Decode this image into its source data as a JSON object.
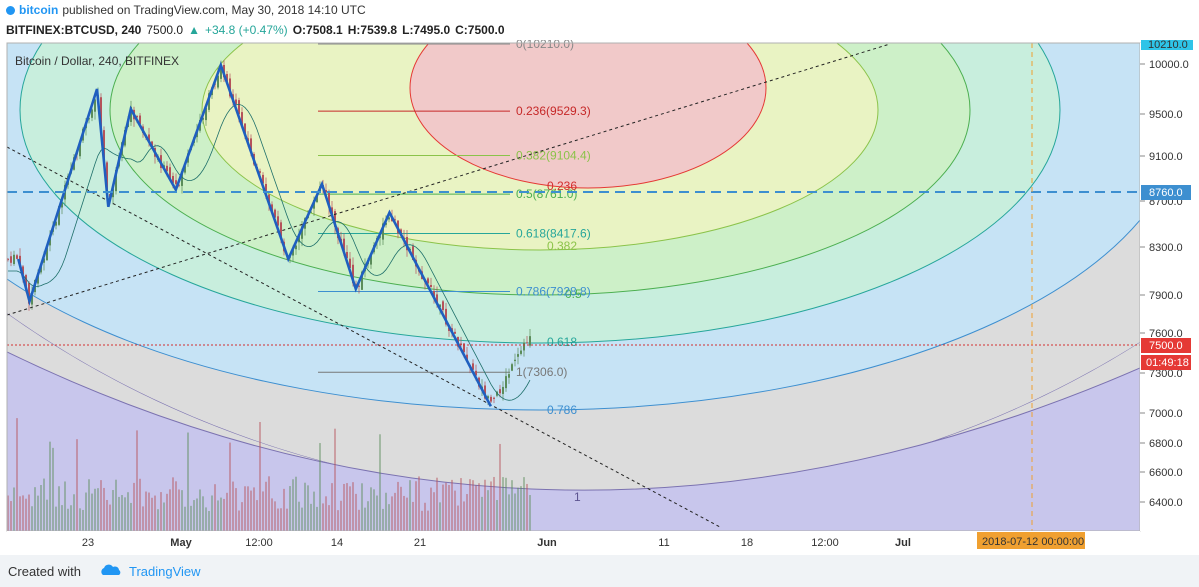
{
  "header": {
    "brand": "bitcoin",
    "published_text": "published on TradingView.com, May 30, 2018 14:10 UTC"
  },
  "quote": {
    "symbol": "BITFINEX:BTCUSD, 240",
    "last": "7500.0",
    "change": "+34.8 (+0.47%)",
    "open": "O:7508.1",
    "high": "H:7539.8",
    "low": "L:7495.0",
    "close": "C:7500.0"
  },
  "footer": {
    "created_with": "Created with",
    "tradingview": "TradingView"
  },
  "chart_data": {
    "type": "candlestick",
    "title": "Bitcoin / Dollar, 240, BITFINEX",
    "y_axis_ticks": [
      "10000.0",
      "9500.0",
      "9100.0",
      "8700.0",
      "8300.0",
      "7900.0",
      "7600.0",
      "7300.0",
      "7000.0",
      "6800.0",
      "6600.0",
      "6400.0"
    ],
    "y_top_label": "10210.0",
    "x_axis_ticks": [
      "23",
      "May",
      "12:00",
      "14",
      "21",
      "Jun",
      "11",
      "18",
      "12:00",
      "Jul"
    ],
    "price_label": "7500.0",
    "countdown_label": "01:49:18",
    "level_label": "8760.0",
    "date_label": "2018-07-12 00:00:00",
    "fib_retracement": [
      {
        "label": "0(10210.0)",
        "value": 10210.0
      },
      {
        "label": "0.236(9529.3)",
        "value": 9529.3
      },
      {
        "label": "0.382(9104.4)",
        "value": 9104.4
      },
      {
        "label": "0.5(8761.0)",
        "value": 8761.0
      },
      {
        "label": "0.618(8417.6)",
        "value": 8417.6
      },
      {
        "label": "0.786(7928.8)",
        "value": 7928.8
      },
      {
        "label": "1(7306.0)",
        "value": 7306.0
      }
    ],
    "fib_circle_labels": [
      "0.236",
      "0.382",
      "0.5",
      "0.618",
      "0.786",
      "1"
    ],
    "zigzag": [
      {
        "x": "2018-04-17",
        "y": 8200
      },
      {
        "x": "2018-04-18",
        "y": 7850
      },
      {
        "x": "2018-04-24",
        "y": 9750
      },
      {
        "x": "2018-04-25",
        "y": 8650
      },
      {
        "x": "2018-04-27",
        "y": 9550
      },
      {
        "x": "2018-05-01",
        "y": 8800
      },
      {
        "x": "2018-05-05",
        "y": 9990
      },
      {
        "x": "2018-05-11",
        "y": 8200
      },
      {
        "x": "2018-05-14",
        "y": 8850
      },
      {
        "x": "2018-05-17",
        "y": 7950
      },
      {
        "x": "2018-05-20",
        "y": 8600
      },
      {
        "x": "2018-05-29",
        "y": 7050
      }
    ]
  }
}
